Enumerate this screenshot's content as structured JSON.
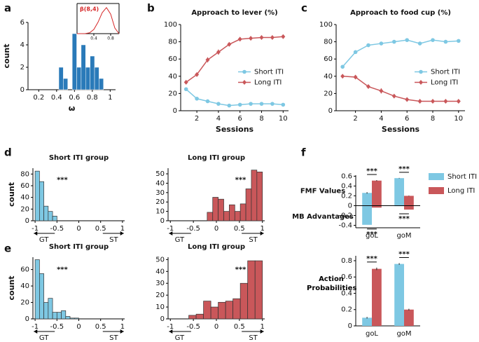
{
  "chart_data": [
    {
      "type": "histogram",
      "panel": "a",
      "xlabel": "ω",
      "ylabel": "count",
      "color": "#2a7ab9",
      "bins": [
        0.425,
        0.475,
        0.525,
        0.575,
        0.625,
        0.675,
        0.725,
        0.775,
        0.825,
        0.875,
        0.925
      ],
      "counts": [
        2,
        1,
        0,
        5,
        2,
        4,
        2,
        3,
        2,
        1
      ],
      "xlim": [
        0.08,
        1.06
      ],
      "xticks": [
        0.2,
        0.4,
        0.6,
        0.8,
        1
      ],
      "ylim": [
        0,
        6
      ],
      "yticks": [
        0,
        2,
        4,
        6
      ]
    },
    {
      "type": "line",
      "title": "β(8,4)",
      "color": "#d62728",
      "x": [
        0,
        0.1,
        0.2,
        0.3,
        0.4,
        0.5,
        0.6,
        0.7,
        0.8,
        0.9,
        1
      ],
      "values": [
        0,
        0,
        0.01,
        0.1,
        0.47,
        1.29,
        2.37,
        2.94,
        2.21,
        0.63,
        0
      ],
      "xlim": [
        0,
        1
      ],
      "xticks": [
        0.4,
        0.8
      ],
      "ylim": [
        0,
        3.4
      ]
    },
    {
      "type": "line",
      "panel": "b",
      "title": "Approach to lever (%)",
      "xlabel": "Sessions",
      "legend": "center right",
      "x": [
        1,
        2,
        3,
        4,
        5,
        6,
        7,
        8,
        9,
        10
      ],
      "series": [
        {
          "name": "Short ITI",
          "color": "#7ec8e3",
          "marker": "circle",
          "values": [
            25,
            14,
            11,
            8,
            6,
            7,
            8,
            8,
            8,
            7
          ],
          "errors": [
            2,
            1.5,
            1,
            1,
            1,
            1,
            1,
            1,
            1,
            1
          ]
        },
        {
          "name": "Long ITI",
          "color": "#c9575a",
          "marker": "diamond",
          "values": [
            33,
            42,
            59,
            68,
            77,
            83,
            84,
            85,
            85,
            86
          ],
          "errors": [
            2,
            2,
            3,
            3,
            2,
            2,
            2,
            1.5,
            1.5,
            1.5
          ]
        }
      ],
      "xlim": [
        0.5,
        10.5
      ],
      "xticks": [
        2,
        4,
        6,
        8,
        10
      ],
      "ylim": [
        0,
        100
      ],
      "yticks": [
        0,
        20,
        40,
        60,
        80,
        100
      ]
    },
    {
      "type": "line",
      "panel": "c",
      "title": "Approach to food cup (%)",
      "xlabel": "Sessions",
      "legend": "center right",
      "x": [
        1,
        2,
        3,
        4,
        5,
        6,
        7,
        8,
        9,
        10
      ],
      "series": [
        {
          "name": "Short ITI",
          "color": "#7ec8e3",
          "marker": "circle",
          "values": [
            51,
            68,
            76,
            78,
            80,
            82,
            78,
            82,
            80,
            81
          ],
          "errors": [
            2,
            2,
            2,
            2,
            2,
            1.5,
            2,
            1.5,
            2,
            2
          ]
        },
        {
          "name": "Long ITI",
          "color": "#c9575a",
          "marker": "diamond",
          "values": [
            40,
            39,
            28,
            23,
            17,
            13,
            11,
            11,
            11,
            11
          ],
          "errors": [
            1.5,
            2,
            2,
            3,
            2,
            1.5,
            1,
            1,
            1,
            1
          ]
        }
      ],
      "xlim": [
        0.5,
        10.5
      ],
      "xticks": [
        2,
        4,
        6,
        8,
        10
      ],
      "ylim": [
        0,
        100
      ],
      "yticks": [
        0,
        20,
        40,
        60,
        80,
        100
      ]
    },
    {
      "type": "histogram",
      "panel": "d",
      "title": "Short ITI group",
      "ylabel": "count",
      "annotation": "***",
      "color": "#7ec8e3",
      "edgecolor": "#333",
      "bins": [
        -1,
        -0.9,
        -0.8,
        -0.7,
        -0.6,
        -0.5
      ],
      "counts": [
        85,
        67,
        25,
        16,
        8
      ],
      "left_label": "GT",
      "right_label": "ST",
      "xlim": [
        -1.05,
        1.05
      ],
      "xticks": [
        -1,
        -0.5,
        0,
        0.5,
        1
      ],
      "ylim": [
        0,
        90
      ],
      "yticks": [
        0,
        20,
        40,
        60,
        80
      ]
    },
    {
      "type": "histogram",
      "title": "Long ITI group",
      "annotation": "***",
      "color": "#c9575a",
      "edgecolor": "#333",
      "bins": [
        -0.2,
        -0.08,
        0.04,
        0.16,
        0.28,
        0.4,
        0.52,
        0.64,
        0.76,
        0.88,
        1.0
      ],
      "counts": [
        9,
        25,
        23,
        10,
        17,
        10,
        18,
        34,
        54,
        52
      ],
      "left_label": "GT",
      "right_label": "ST",
      "xlim": [
        -1.05,
        1.05
      ],
      "xticks": [
        -1,
        -0.5,
        0,
        0.5,
        1
      ],
      "ylim": [
        0,
        56
      ],
      "yticks": [
        0,
        10,
        20,
        30,
        40,
        50
      ]
    },
    {
      "type": "histogram",
      "panel": "e",
      "title": "Short ITI group",
      "ylabel": "count",
      "annotation": "***",
      "color": "#7ec8e3",
      "edgecolor": "#333",
      "bins": [
        -1,
        -0.9,
        -0.8,
        -0.7,
        -0.6,
        -0.5,
        -0.4,
        -0.3,
        -0.2,
        -0.1,
        0
      ],
      "counts": [
        72,
        55,
        20,
        25,
        8,
        8,
        10,
        3,
        1,
        1
      ],
      "left_label": "GT",
      "right_label": "ST",
      "xlim": [
        -1.05,
        1.05
      ],
      "xticks": [
        -1,
        -0.5,
        0,
        0.5,
        1
      ],
      "ylim": [
        0,
        75
      ],
      "yticks": [
        0,
        20,
        40,
        60
      ]
    },
    {
      "type": "histogram",
      "title": "Long ITI group",
      "annotation": "***",
      "color": "#c9575a",
      "edgecolor": "#333",
      "bins": [
        -0.6,
        -0.44,
        -0.28,
        -0.12,
        0.04,
        0.2,
        0.36,
        0.52,
        0.68,
        0.84,
        1.0
      ],
      "counts": [
        3,
        4,
        15,
        10,
        14,
        15,
        17,
        30,
        49,
        49
      ],
      "left_label": "GT",
      "right_label": "ST",
      "xlim": [
        -1.05,
        1.05
      ],
      "xticks": [
        -1,
        -0.5,
        0,
        0.5,
        1
      ],
      "ylim": [
        0,
        52
      ],
      "yticks": [
        0,
        10,
        20,
        30,
        40,
        50
      ]
    },
    {
      "type": "split_bar",
      "panel": "f",
      "legend": "upper right",
      "row_labels": [
        "FMF Values",
        "MB Advantages"
      ],
      "categories": [
        "goL",
        "goM"
      ],
      "series": [
        {
          "name": "Short ITI",
          "color": "#7ec8e3",
          "values": [
            0.26,
            0.56
          ],
          "errors": [
            0.015,
            0.005
          ],
          "below_values": [
            -0.39,
            -0.01
          ]
        },
        {
          "name": "Long ITI",
          "color": "#c9575a",
          "values": [
            0.51,
            0.2
          ],
          "errors": [
            0.01,
            0.005
          ],
          "below_values": [
            -0.04,
            -0.08
          ]
        }
      ],
      "sig_above": [
        "***",
        "***"
      ],
      "sig_below": [
        "***",
        "***"
      ],
      "ylim": [
        -0.45,
        0.62
      ],
      "yticks": [
        -0.4,
        -0.2,
        0,
        0.2,
        0.4,
        0.6
      ]
    },
    {
      "type": "bar",
      "ylabel": "Action Probabilities",
      "categories": [
        "goL",
        "goM"
      ],
      "series": [
        {
          "name": "Short ITI",
          "color": "#7ec8e3",
          "values": [
            0.1,
            0.76
          ],
          "errors": [
            0.01,
            0.01
          ]
        },
        {
          "name": "Long ITI",
          "color": "#c9575a",
          "values": [
            0.7,
            0.2
          ],
          "errors": [
            0.015,
            0.01
          ]
        }
      ],
      "sig_above": [
        "***",
        "***"
      ],
      "ylim": [
        0,
        0.86
      ],
      "yticks": [
        0,
        0.2,
        0.4,
        0.6,
        0.8
      ]
    }
  ]
}
